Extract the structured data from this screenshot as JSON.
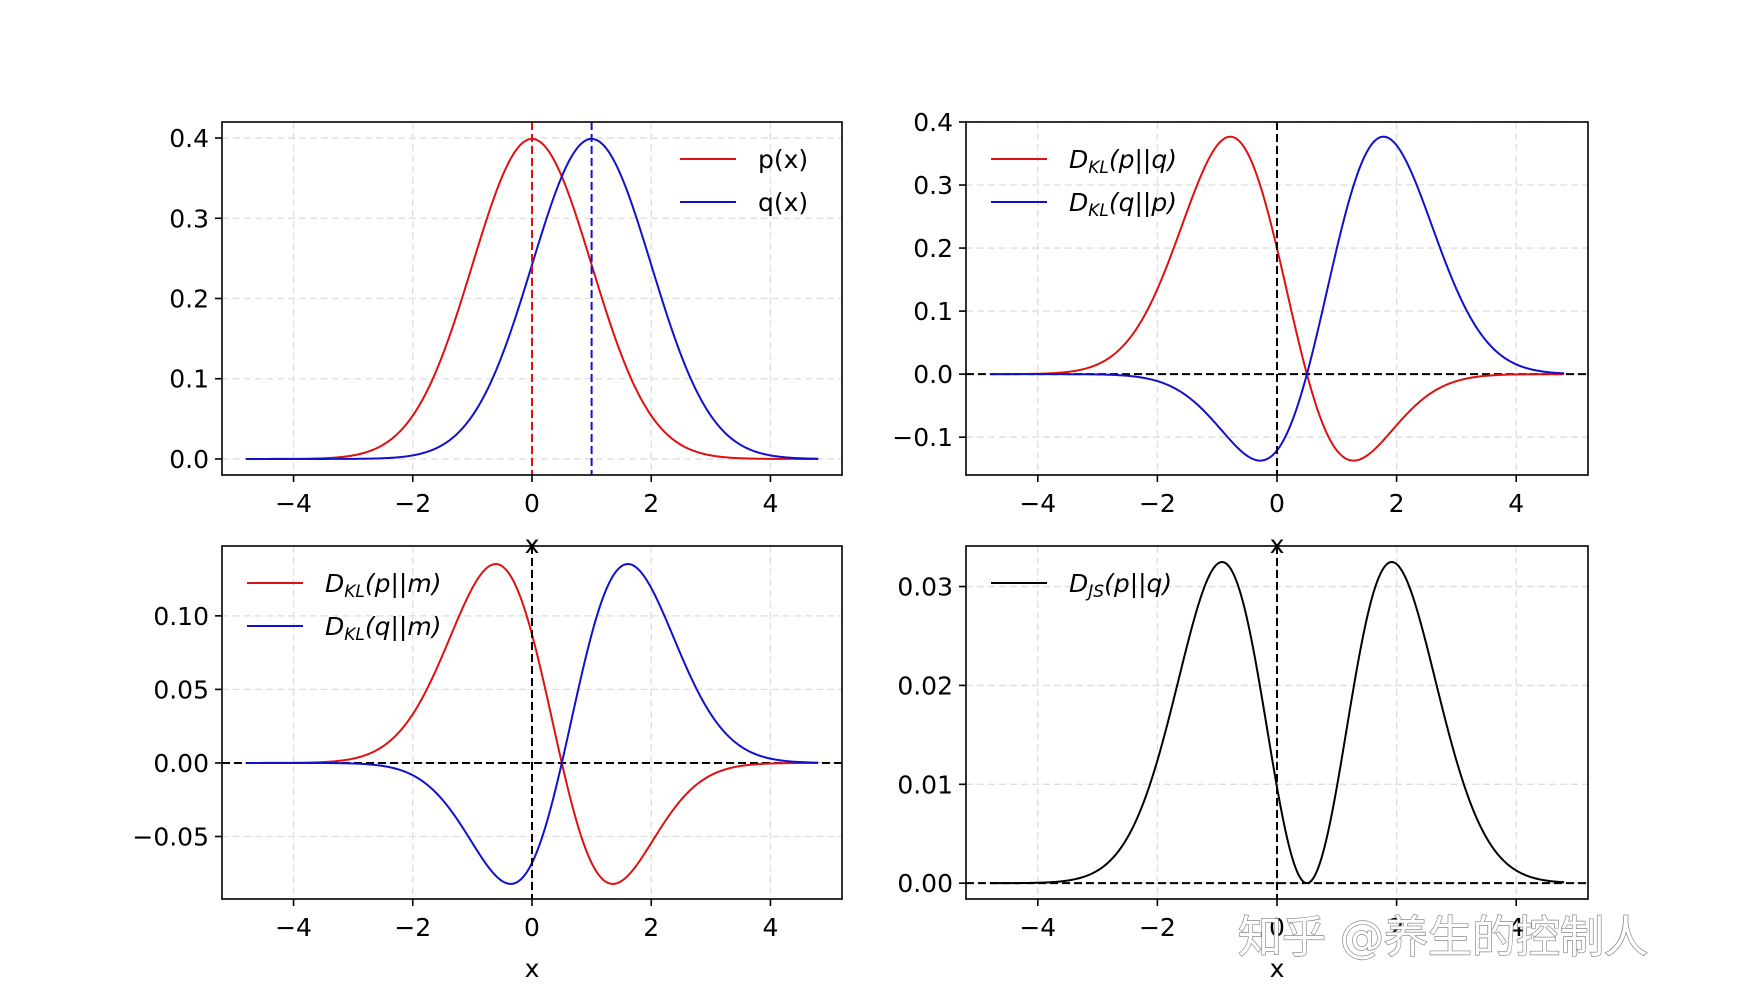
{
  "watermark": "知乎 @养生的控制人",
  "chart_data": [
    {
      "type": "line",
      "id": "pq",
      "x_domain": [
        -4.8,
        4.8
      ],
      "xlim": [
        -5.2,
        5.2
      ],
      "ylim": [
        -0.02,
        0.42
      ],
      "xticks": [
        -4,
        -2,
        0,
        2,
        4
      ],
      "xtick_labels": [
        "−4",
        "−2",
        "0",
        "2",
        "4"
      ],
      "yticks": [
        0.0,
        0.1,
        0.2,
        0.3,
        0.4
      ],
      "ytick_labels": [
        "0.0",
        "0.1",
        "0.2",
        "0.3",
        "0.4"
      ],
      "xlabel": "x",
      "grid": true,
      "legend_position": "upper right",
      "vlines": [
        {
          "x": 0,
          "color": "#dd1111"
        },
        {
          "x": 1,
          "color": "#1111cc"
        }
      ],
      "hlines": [],
      "series": [
        {
          "name": "p(x)",
          "legend": "p(x)",
          "sub": "",
          "rest": "",
          "fn": "p",
          "color": "#dd1111"
        },
        {
          "name": "q(x)",
          "legend": "q(x)",
          "sub": "",
          "rest": "",
          "fn": "q",
          "color": "#1111cc"
        }
      ]
    },
    {
      "type": "line",
      "id": "kl_pq",
      "x_domain": [
        -4.8,
        4.8
      ],
      "xlim": [
        -5.2,
        5.2
      ],
      "ylim": [
        -0.16,
        0.4
      ],
      "xticks": [
        -4,
        -2,
        0,
        2,
        4
      ],
      "xtick_labels": [
        "−4",
        "−2",
        "0",
        "2",
        "4"
      ],
      "yticks": [
        -0.1,
        0.0,
        0.1,
        0.2,
        0.3,
        0.4
      ],
      "ytick_labels": [
        "−0.1",
        "0.0",
        "0.1",
        "0.2",
        "0.3",
        "0.4"
      ],
      "xlabel": "x",
      "grid": true,
      "legend_position": "upper left",
      "vlines": [
        {
          "x": 0,
          "color": "#000000"
        }
      ],
      "hlines": [
        {
          "y": 0,
          "color": "#000000"
        }
      ],
      "series": [
        {
          "name": "D_KL(p||q)",
          "legend": "D",
          "sub": "KL",
          "rest": "(p||q)",
          "fn": "klpq",
          "color": "#dd1111"
        },
        {
          "name": "D_KL(q||p)",
          "legend": "D",
          "sub": "KL",
          "rest": "(q||p)",
          "fn": "klqp",
          "color": "#1111cc"
        }
      ]
    },
    {
      "type": "line",
      "id": "kl_m",
      "x_domain": [
        -4.8,
        4.8
      ],
      "xlim": [
        -5.2,
        5.2
      ],
      "ylim": [
        -0.0925,
        0.1475
      ],
      "xticks": [
        -4,
        -2,
        0,
        2,
        4
      ],
      "xtick_labels": [
        "−4",
        "−2",
        "0",
        "2",
        "4"
      ],
      "yticks": [
        -0.05,
        0.0,
        0.05,
        0.1
      ],
      "ytick_labels": [
        "−0.05",
        "0.00",
        "0.05",
        "0.10"
      ],
      "xlabel": "x",
      "grid": true,
      "legend_position": "upper left",
      "vlines": [
        {
          "x": 0,
          "color": "#000000"
        }
      ],
      "hlines": [
        {
          "y": 0,
          "color": "#000000"
        }
      ],
      "series": [
        {
          "name": "D_KL(p||m)",
          "legend": "D",
          "sub": "KL",
          "rest": "(p||m)",
          "fn": "klpm",
          "color": "#dd1111"
        },
        {
          "name": "D_KL(q||m)",
          "legend": "D",
          "sub": "KL",
          "rest": "(q||m)",
          "fn": "klqm",
          "color": "#1111cc"
        }
      ]
    },
    {
      "type": "line",
      "id": "js",
      "x_domain": [
        -4.8,
        4.8
      ],
      "xlim": [
        -5.2,
        5.2
      ],
      "ylim": [
        -0.0016,
        0.0341
      ],
      "xticks": [
        -4,
        -2,
        0,
        2,
        4
      ],
      "xtick_labels": [
        "−4",
        "−2",
        "0",
        "2",
        "4"
      ],
      "yticks": [
        0.0,
        0.01,
        0.02,
        0.03
      ],
      "ytick_labels": [
        "0.00",
        "0.01",
        "0.02",
        "0.03"
      ],
      "xlabel": "x",
      "grid": true,
      "legend_position": "upper left",
      "vlines": [
        {
          "x": 0,
          "color": "#000000"
        }
      ],
      "hlines": [
        {
          "y": 0,
          "color": "#000000"
        }
      ],
      "series": [
        {
          "name": "D_JS(p||q)",
          "legend": "D",
          "sub": "JS",
          "rest": "(p||q)",
          "fn": "js",
          "color": "#000000"
        }
      ]
    }
  ]
}
